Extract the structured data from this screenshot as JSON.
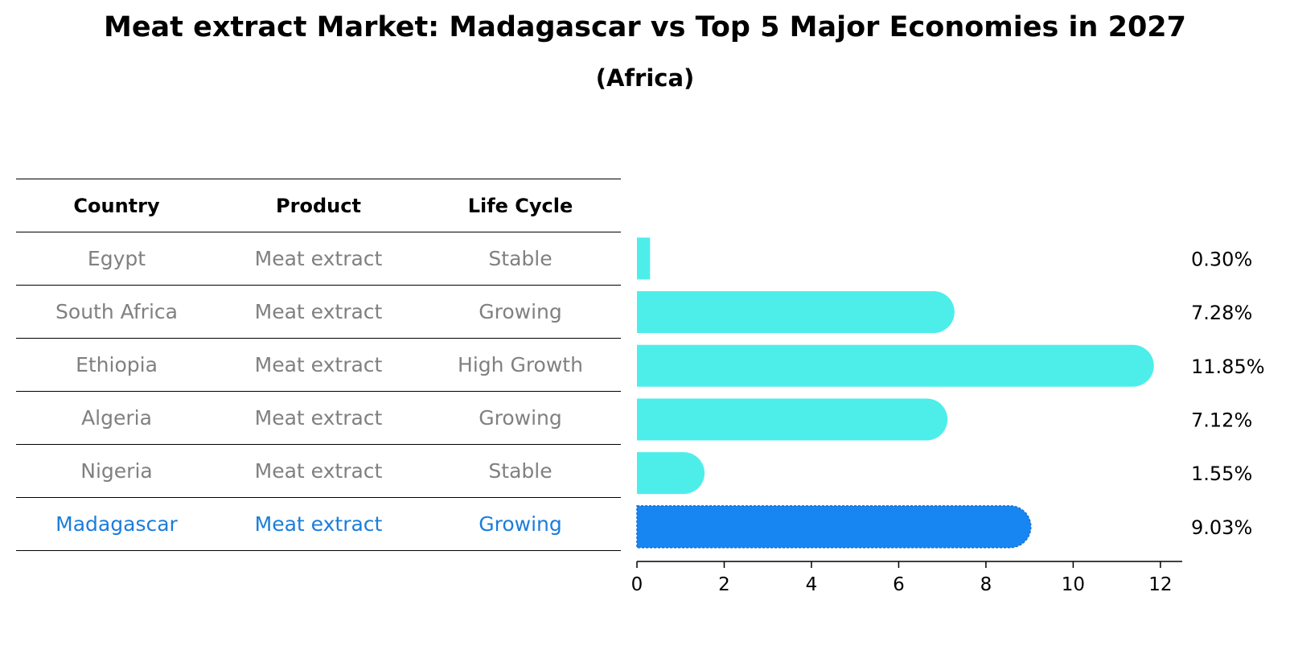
{
  "title": "Meat extract Market: Madagascar vs Top 5 Major Economies in 2027",
  "subtitle": "(Africa)",
  "table": {
    "headers": [
      "Country",
      "Product",
      "Life Cycle"
    ],
    "rows": [
      {
        "country": "Egypt",
        "product": "Meat extract",
        "life_cycle": "Stable"
      },
      {
        "country": "South Africa",
        "product": "Meat extract",
        "life_cycle": "Growing"
      },
      {
        "country": "Ethiopia",
        "product": "Meat extract",
        "life_cycle": "High Growth"
      },
      {
        "country": "Algeria",
        "product": "Meat extract",
        "life_cycle": "Growing"
      },
      {
        "country": "Nigeria",
        "product": "Meat extract",
        "life_cycle": "Stable"
      },
      {
        "country": "Madagascar",
        "product": "Meat extract",
        "life_cycle": "Growing"
      }
    ],
    "highlight_color": "#1a7ddc",
    "text_color": "#808080"
  },
  "chart_data": {
    "type": "bar",
    "orientation": "horizontal",
    "categories": [
      "Egypt",
      "South Africa",
      "Ethiopia",
      "Algeria",
      "Nigeria",
      "Madagascar"
    ],
    "values": [
      0.3,
      7.28,
      11.85,
      7.12,
      1.55,
      9.03
    ],
    "value_labels": [
      "0.30%",
      "7.28%",
      "11.85%",
      "7.12%",
      "1.55%",
      "9.03%"
    ],
    "xlim": [
      0,
      12.5
    ],
    "xticks": [
      0,
      2,
      4,
      6,
      8,
      10,
      12
    ],
    "grid": false,
    "colors": {
      "default": "#4deeea",
      "highlight": "#1786f3"
    },
    "highlight_category": "Madagascar"
  }
}
